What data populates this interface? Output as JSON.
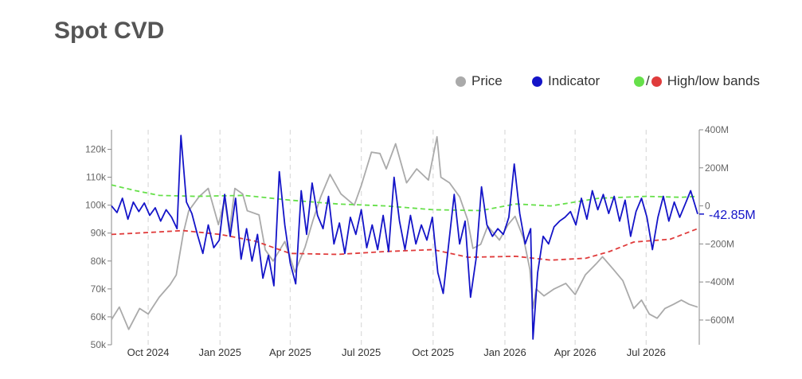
{
  "title": "Spot CVD",
  "legend": {
    "price": "Price",
    "indicator": "Indicator",
    "bands_separator": "/",
    "bands": "High/low bands"
  },
  "colors": {
    "price": "#aaaaaa",
    "indicator": "#1414c8",
    "high_band": "#66e04a",
    "low_band": "#e03c3c",
    "grid": "#dddddd",
    "axis_text": "#666666",
    "current_label": "#1414c8"
  },
  "current_value_label": "-42.85M",
  "chart_data": {
    "type": "line",
    "x_axis": {
      "type": "date",
      "range": [
        "2024-08-15",
        "2026-09-07"
      ],
      "ticks": [
        {
          "date": "2024-10-01",
          "label": "Oct 2024"
        },
        {
          "date": "2025-01-01",
          "label": "Jan 2025"
        },
        {
          "date": "2025-04-01",
          "label": "Apr 2025"
        },
        {
          "date": "2025-07-01",
          "label": "Jul 2025"
        },
        {
          "date": "2025-10-01",
          "label": "Oct 2025"
        },
        {
          "date": "2026-01-01",
          "label": "Jan 2026"
        },
        {
          "date": "2026-04-01",
          "label": "Apr 2026"
        },
        {
          "date": "2026-07-01",
          "label": "Jul 2026"
        }
      ],
      "vertical_grid": "dashed"
    },
    "y_axis_left": {
      "range": [
        50000,
        127000
      ],
      "ticks": [
        {
          "value": 50000,
          "label": "50k"
        },
        {
          "value": 60000,
          "label": "60k"
        },
        {
          "value": 70000,
          "label": "70k"
        },
        {
          "value": 80000,
          "label": "80k"
        },
        {
          "value": 90000,
          "label": "90k"
        },
        {
          "value": 100000,
          "label": "100k"
        },
        {
          "value": 110000,
          "label": "110k"
        },
        {
          "value": 120000,
          "label": "120k"
        }
      ]
    },
    "y_axis_right": {
      "range": [
        -730,
        400
      ],
      "unit": "M",
      "ticks": [
        {
          "value": 400,
          "label": "400M"
        },
        {
          "value": 200,
          "label": "200M"
        },
        {
          "value": 0,
          "label": "0"
        },
        {
          "value": -200,
          "label": "−200M"
        },
        {
          "value": -400,
          "label": "−400M"
        },
        {
          "value": -600,
          "label": "−600M"
        }
      ]
    },
    "series": [
      {
        "key": "price",
        "axis": "left",
        "style": "solid",
        "points": [
          [
            "2024-08-15",
            59000
          ],
          [
            "2024-08-25",
            63500
          ],
          [
            "2024-09-06",
            55500
          ],
          [
            "2024-09-20",
            63000
          ],
          [
            "2024-10-01",
            61000
          ],
          [
            "2024-10-15",
            67000
          ],
          [
            "2024-10-29",
            71500
          ],
          [
            "2024-11-06",
            75000
          ],
          [
            "2024-11-15",
            90000
          ],
          [
            "2024-11-22",
            98000
          ],
          [
            "2024-12-05",
            103000
          ],
          [
            "2024-12-17",
            106000
          ],
          [
            "2024-12-30",
            93000
          ],
          [
            "2025-01-07",
            102000
          ],
          [
            "2025-01-13",
            90500
          ],
          [
            "2025-01-20",
            106000
          ],
          [
            "2025-01-30",
            104000
          ],
          [
            "2025-02-05",
            98000
          ],
          [
            "2025-02-20",
            96500
          ],
          [
            "2025-02-28",
            84000
          ],
          [
            "2025-03-10",
            80000
          ],
          [
            "2025-03-25",
            87000
          ],
          [
            "2025-04-07",
            76000
          ],
          [
            "2025-04-20",
            85000
          ],
          [
            "2025-04-30",
            94500
          ],
          [
            "2025-05-10",
            103000
          ],
          [
            "2025-05-22",
            111000
          ],
          [
            "2025-06-05",
            104000
          ],
          [
            "2025-06-22",
            100000
          ],
          [
            "2025-07-01",
            107000
          ],
          [
            "2025-07-14",
            119000
          ],
          [
            "2025-07-25",
            118500
          ],
          [
            "2025-08-02",
            113000
          ],
          [
            "2025-08-14",
            122000
          ],
          [
            "2025-08-28",
            108000
          ],
          [
            "2025-09-10",
            113000
          ],
          [
            "2025-09-25",
            109000
          ],
          [
            "2025-10-06",
            124500
          ],
          [
            "2025-10-11",
            110000
          ],
          [
            "2025-10-22",
            108000
          ],
          [
            "2025-11-04",
            103000
          ],
          [
            "2025-11-14",
            95000
          ],
          [
            "2025-11-21",
            84500
          ],
          [
            "2025-12-01",
            86000
          ],
          [
            "2025-12-10",
            92500
          ],
          [
            "2025-12-25",
            87500
          ],
          [
            "2026-01-05",
            93000
          ],
          [
            "2026-01-14",
            96000
          ],
          [
            "2026-01-25",
            88000
          ],
          [
            "2026-02-02",
            77000
          ],
          [
            "2026-02-06",
            63000
          ],
          [
            "2026-02-10",
            70000
          ],
          [
            "2026-02-20",
            67500
          ],
          [
            "2026-03-05",
            70000
          ],
          [
            "2026-03-20",
            72000
          ],
          [
            "2026-04-01",
            68000
          ],
          [
            "2026-04-14",
            75000
          ],
          [
            "2026-04-28",
            79000
          ],
          [
            "2026-05-06",
            81500
          ],
          [
            "2026-05-20",
            77000
          ],
          [
            "2026-06-01",
            73000
          ],
          [
            "2026-06-15",
            63000
          ],
          [
            "2026-06-25",
            66000
          ],
          [
            "2026-07-05",
            61000
          ],
          [
            "2026-07-15",
            59500
          ],
          [
            "2026-07-25",
            63000
          ],
          [
            "2026-08-05",
            64500
          ],
          [
            "2026-08-15",
            66000
          ],
          [
            "2026-08-25",
            64500
          ],
          [
            "2026-09-05",
            63500
          ]
        ]
      },
      {
        "key": "indicator",
        "axis": "right",
        "style": "solid",
        "points": [
          [
            "2024-08-15",
            0
          ],
          [
            "2024-08-22",
            -35
          ],
          [
            "2024-08-29",
            40
          ],
          [
            "2024-09-05",
            -70
          ],
          [
            "2024-09-12",
            20
          ],
          [
            "2024-09-19",
            -30
          ],
          [
            "2024-09-26",
            15
          ],
          [
            "2024-10-03",
            -50
          ],
          [
            "2024-10-10",
            -10
          ],
          [
            "2024-10-17",
            -80
          ],
          [
            "2024-10-24",
            -20
          ],
          [
            "2024-10-31",
            -60
          ],
          [
            "2024-11-07",
            -120
          ],
          [
            "2024-11-12",
            370
          ],
          [
            "2024-11-19",
            20
          ],
          [
            "2024-11-26",
            -40
          ],
          [
            "2024-12-03",
            -150
          ],
          [
            "2024-12-10",
            -250
          ],
          [
            "2024-12-17",
            -100
          ],
          [
            "2024-12-24",
            -220
          ],
          [
            "2024-12-31",
            -180
          ],
          [
            "2025-01-07",
            60
          ],
          [
            "2025-01-14",
            -160
          ],
          [
            "2025-01-21",
            40
          ],
          [
            "2025-01-28",
            -280
          ],
          [
            "2025-02-04",
            -120
          ],
          [
            "2025-02-11",
            -290
          ],
          [
            "2025-02-18",
            -150
          ],
          [
            "2025-02-25",
            -380
          ],
          [
            "2025-03-04",
            -260
          ],
          [
            "2025-03-11",
            -420
          ],
          [
            "2025-03-18",
            180
          ],
          [
            "2025-03-25",
            -100
          ],
          [
            "2025-04-01",
            -300
          ],
          [
            "2025-04-08",
            -410
          ],
          [
            "2025-04-15",
            80
          ],
          [
            "2025-04-22",
            -150
          ],
          [
            "2025-04-29",
            120
          ],
          [
            "2025-05-06",
            -50
          ],
          [
            "2025-05-13",
            -120
          ],
          [
            "2025-05-20",
            50
          ],
          [
            "2025-05-27",
            -200
          ],
          [
            "2025-06-03",
            -90
          ],
          [
            "2025-06-10",
            -250
          ],
          [
            "2025-06-17",
            -60
          ],
          [
            "2025-06-24",
            -150
          ],
          [
            "2025-07-01",
            -20
          ],
          [
            "2025-07-08",
            -220
          ],
          [
            "2025-07-15",
            -100
          ],
          [
            "2025-07-22",
            -230
          ],
          [
            "2025-07-29",
            -50
          ],
          [
            "2025-08-05",
            -240
          ],
          [
            "2025-08-12",
            150
          ],
          [
            "2025-08-19",
            -80
          ],
          [
            "2025-08-26",
            -230
          ],
          [
            "2025-09-02",
            -50
          ],
          [
            "2025-09-09",
            -200
          ],
          [
            "2025-09-16",
            -100
          ],
          [
            "2025-09-23",
            -180
          ],
          [
            "2025-09-30",
            -60
          ],
          [
            "2025-10-07",
            -350
          ],
          [
            "2025-10-14",
            -460
          ],
          [
            "2025-10-21",
            -200
          ],
          [
            "2025-10-28",
            60
          ],
          [
            "2025-11-04",
            -200
          ],
          [
            "2025-11-11",
            -80
          ],
          [
            "2025-11-18",
            -480
          ],
          [
            "2025-11-25",
            -280
          ],
          [
            "2025-12-02",
            100
          ],
          [
            "2025-12-09",
            -100
          ],
          [
            "2025-12-16",
            -160
          ],
          [
            "2025-12-23",
            -120
          ],
          [
            "2025-12-30",
            -150
          ],
          [
            "2026-01-06",
            -60
          ],
          [
            "2026-01-13",
            220
          ],
          [
            "2026-01-20",
            -40
          ],
          [
            "2026-01-27",
            -200
          ],
          [
            "2026-02-03",
            -120
          ],
          [
            "2026-02-06",
            -700
          ],
          [
            "2026-02-12",
            -350
          ],
          [
            "2026-02-19",
            -160
          ],
          [
            "2026-02-26",
            -200
          ],
          [
            "2026-03-05",
            -110
          ],
          [
            "2026-03-12",
            -80
          ],
          [
            "2026-03-19",
            -60
          ],
          [
            "2026-03-26",
            -30
          ],
          [
            "2026-04-02",
            -100
          ],
          [
            "2026-04-09",
            40
          ],
          [
            "2026-04-16",
            -70
          ],
          [
            "2026-04-23",
            80
          ],
          [
            "2026-04-30",
            -20
          ],
          [
            "2026-05-07",
            60
          ],
          [
            "2026-05-14",
            -40
          ],
          [
            "2026-05-21",
            50
          ],
          [
            "2026-05-28",
            -80
          ],
          [
            "2026-06-04",
            30
          ],
          [
            "2026-06-11",
            -160
          ],
          [
            "2026-06-18",
            -30
          ],
          [
            "2026-06-25",
            40
          ],
          [
            "2026-07-02",
            -60
          ],
          [
            "2026-07-09",
            -230
          ],
          [
            "2026-07-16",
            -60
          ],
          [
            "2026-07-23",
            50
          ],
          [
            "2026-07-30",
            -80
          ],
          [
            "2026-08-06",
            20
          ],
          [
            "2026-08-13",
            -60
          ],
          [
            "2026-08-20",
            10
          ],
          [
            "2026-08-27",
            80
          ],
          [
            "2026-09-05",
            -43
          ]
        ]
      },
      {
        "key": "high_band",
        "axis": "right",
        "style": "dashed",
        "points": [
          [
            "2024-08-15",
            110
          ],
          [
            "2024-09-15",
            80
          ],
          [
            "2024-10-15",
            55
          ],
          [
            "2024-12-01",
            50
          ],
          [
            "2025-02-01",
            55
          ],
          [
            "2025-04-01",
            30
          ],
          [
            "2025-06-01",
            10
          ],
          [
            "2025-08-01",
            0
          ],
          [
            "2025-10-01",
            -20
          ],
          [
            "2025-12-01",
            -25
          ],
          [
            "2026-01-15",
            10
          ],
          [
            "2026-03-01",
            0
          ],
          [
            "2026-05-01",
            40
          ],
          [
            "2026-07-01",
            50
          ],
          [
            "2026-08-15",
            45
          ],
          [
            "2026-09-05",
            50
          ]
        ]
      },
      {
        "key": "low_band",
        "axis": "right",
        "style": "dashed",
        "points": [
          [
            "2024-08-15",
            -150
          ],
          [
            "2024-10-01",
            -140
          ],
          [
            "2024-11-15",
            -130
          ],
          [
            "2025-01-01",
            -150
          ],
          [
            "2025-02-15",
            -185
          ],
          [
            "2025-04-01",
            -250
          ],
          [
            "2025-06-01",
            -255
          ],
          [
            "2025-08-01",
            -240
          ],
          [
            "2025-10-01",
            -230
          ],
          [
            "2025-11-15",
            -270
          ],
          [
            "2026-01-15",
            -265
          ],
          [
            "2026-03-01",
            -285
          ],
          [
            "2026-04-15",
            -275
          ],
          [
            "2026-05-15",
            -240
          ],
          [
            "2026-06-15",
            -190
          ],
          [
            "2026-08-01",
            -175
          ],
          [
            "2026-09-05",
            -120
          ]
        ]
      }
    ]
  }
}
